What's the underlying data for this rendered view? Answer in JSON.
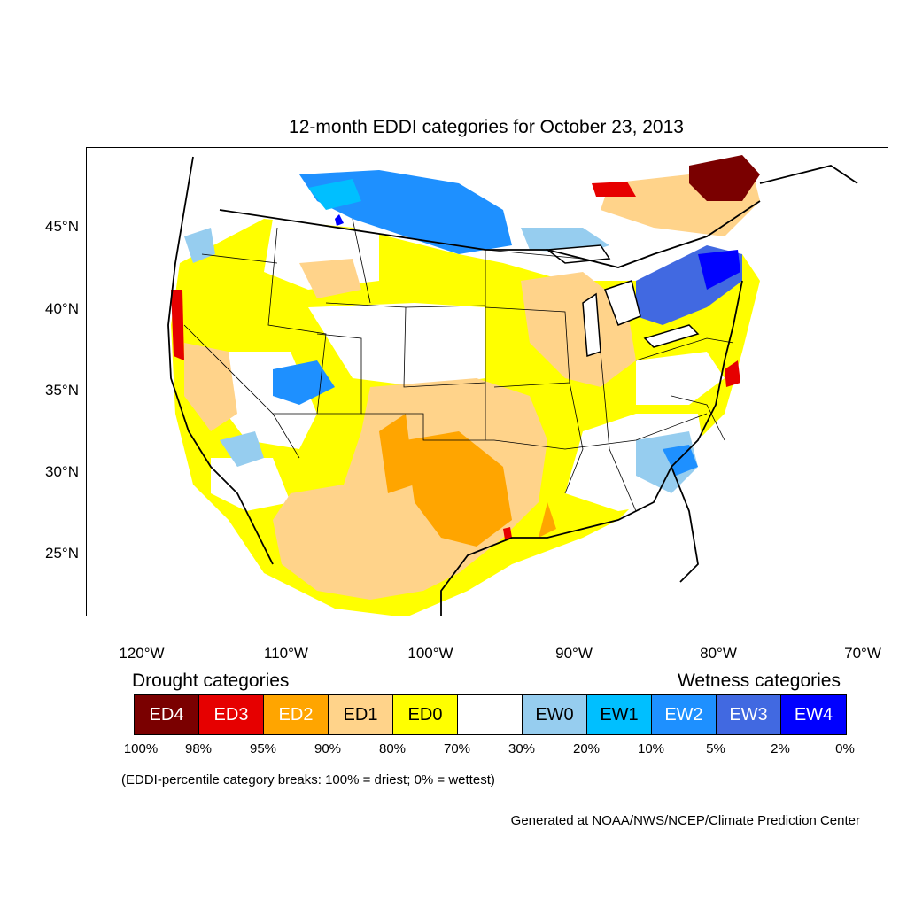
{
  "title": "12-month EDDI categories for October 23, 2013",
  "axes": {
    "lat_labels": [
      "45°N",
      "40°N",
      "35°N",
      "30°N",
      "25°N"
    ],
    "lon_labels": [
      "120°W",
      "110°W",
      "100°W",
      "90°W",
      "80°W",
      "70°W"
    ]
  },
  "legend": {
    "drought_heading": "Drought categories",
    "wetness_heading": "Wetness categories",
    "categories": [
      {
        "label": "ED4",
        "color": "#7a0000",
        "text_color": "#ffffff"
      },
      {
        "label": "ED3",
        "color": "#e60000",
        "text_color": "#ffffff"
      },
      {
        "label": "ED2",
        "color": "#ffa500",
        "text_color": "#ffffff"
      },
      {
        "label": "ED1",
        "color": "#ffd38a",
        "text_color": "#000000"
      },
      {
        "label": "ED0",
        "color": "#ffff00",
        "text_color": "#000000"
      },
      {
        "label": "",
        "color": "#ffffff",
        "text_color": "#000000"
      },
      {
        "label": "EW0",
        "color": "#96cdef",
        "text_color": "#000000"
      },
      {
        "label": "EW1",
        "color": "#00bfff",
        "text_color": "#000000"
      },
      {
        "label": "EW2",
        "color": "#1e90ff",
        "text_color": "#ffffff"
      },
      {
        "label": "EW3",
        "color": "#4169e1",
        "text_color": "#ffffff"
      },
      {
        "label": "EW4",
        "color": "#0000ff",
        "text_color": "#ffffff"
      }
    ],
    "breaks": [
      "100%",
      "98%",
      "95%",
      "90%",
      "80%",
      "70%",
      "30%",
      "20%",
      "10%",
      "5%",
      "2%",
      "0%"
    ]
  },
  "note": "(EDDI-percentile category breaks: 100% = driest; 0% = wettest)",
  "credit": "Generated at NOAA/NWS/NCEP/Climate Prediction Center"
}
